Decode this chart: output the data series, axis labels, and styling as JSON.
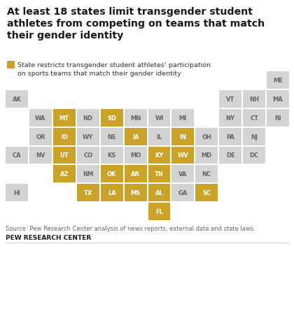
{
  "title": "At least 18 states limit transgender student\nathletes from competing on teams that match\ntheir gender identity",
  "legend_label": "State restricts transgender student athletes’ participation\non sports teams that match their gender identity",
  "source": "Source: Pew Research Center analysis of news reports, external data and state laws.",
  "footer": "PEW RESEARCH CENTER",
  "highlight_color": "#C9A227",
  "neutral_color": "#D4D4D4",
  "background_color": "#FFFFFF",
  "title_color": "#1a1a1a",
  "source_color": "#666666",
  "footer_color": "#1a1a1a",
  "neutral_text_color": "#666666",
  "highlight_text_color": "#FFFFFF",
  "states": [
    {
      "abbr": "AK",
      "col": 0,
      "row": 1,
      "highlight": false
    },
    {
      "abbr": "WA",
      "col": 1,
      "row": 2,
      "highlight": false
    },
    {
      "abbr": "MT",
      "col": 2,
      "row": 2,
      "highlight": true
    },
    {
      "abbr": "ND",
      "col": 3,
      "row": 2,
      "highlight": false
    },
    {
      "abbr": "SD",
      "col": 4,
      "row": 2,
      "highlight": true
    },
    {
      "abbr": "MN",
      "col": 5,
      "row": 2,
      "highlight": false
    },
    {
      "abbr": "WI",
      "col": 6,
      "row": 2,
      "highlight": false
    },
    {
      "abbr": "MI",
      "col": 7,
      "row": 2,
      "highlight": false
    },
    {
      "abbr": "VT",
      "col": 9,
      "row": 1,
      "highlight": false
    },
    {
      "abbr": "NH",
      "col": 10,
      "row": 1,
      "highlight": false
    },
    {
      "abbr": "ME",
      "col": 11,
      "row": 0,
      "highlight": false
    },
    {
      "abbr": "MA",
      "col": 11,
      "row": 1,
      "highlight": false
    },
    {
      "abbr": "NY",
      "col": 9,
      "row": 2,
      "highlight": false
    },
    {
      "abbr": "CT",
      "col": 10,
      "row": 2,
      "highlight": false
    },
    {
      "abbr": "RI",
      "col": 11,
      "row": 2,
      "highlight": false
    },
    {
      "abbr": "OR",
      "col": 1,
      "row": 3,
      "highlight": false
    },
    {
      "abbr": "ID",
      "col": 2,
      "row": 3,
      "highlight": true
    },
    {
      "abbr": "WY",
      "col": 3,
      "row": 3,
      "highlight": false
    },
    {
      "abbr": "NE",
      "col": 4,
      "row": 3,
      "highlight": false
    },
    {
      "abbr": "IA",
      "col": 5,
      "row": 3,
      "highlight": true
    },
    {
      "abbr": "IL",
      "col": 6,
      "row": 3,
      "highlight": false
    },
    {
      "abbr": "IN",
      "col": 7,
      "row": 3,
      "highlight": true
    },
    {
      "abbr": "OH",
      "col": 8,
      "row": 3,
      "highlight": false
    },
    {
      "abbr": "PA",
      "col": 9,
      "row": 3,
      "highlight": false
    },
    {
      "abbr": "NJ",
      "col": 10,
      "row": 3,
      "highlight": false
    },
    {
      "abbr": "CA",
      "col": 0,
      "row": 4,
      "highlight": false
    },
    {
      "abbr": "NV",
      "col": 1,
      "row": 4,
      "highlight": false
    },
    {
      "abbr": "UT",
      "col": 2,
      "row": 4,
      "highlight": true
    },
    {
      "abbr": "CO",
      "col": 3,
      "row": 4,
      "highlight": false
    },
    {
      "abbr": "KS",
      "col": 4,
      "row": 4,
      "highlight": false
    },
    {
      "abbr": "MO",
      "col": 5,
      "row": 4,
      "highlight": false
    },
    {
      "abbr": "KY",
      "col": 6,
      "row": 4,
      "highlight": true
    },
    {
      "abbr": "WV",
      "col": 7,
      "row": 4,
      "highlight": true
    },
    {
      "abbr": "MD",
      "col": 8,
      "row": 4,
      "highlight": false
    },
    {
      "abbr": "DE",
      "col": 9,
      "row": 4,
      "highlight": false
    },
    {
      "abbr": "DC",
      "col": 10,
      "row": 4,
      "highlight": false
    },
    {
      "abbr": "AZ",
      "col": 2,
      "row": 5,
      "highlight": true
    },
    {
      "abbr": "NM",
      "col": 3,
      "row": 5,
      "highlight": false
    },
    {
      "abbr": "OK",
      "col": 4,
      "row": 5,
      "highlight": true
    },
    {
      "abbr": "AR",
      "col": 5,
      "row": 5,
      "highlight": true
    },
    {
      "abbr": "TN",
      "col": 6,
      "row": 5,
      "highlight": true
    },
    {
      "abbr": "VA",
      "col": 7,
      "row": 5,
      "highlight": false
    },
    {
      "abbr": "NC",
      "col": 8,
      "row": 5,
      "highlight": false
    },
    {
      "abbr": "HI",
      "col": 0,
      "row": 6,
      "highlight": false
    },
    {
      "abbr": "TX",
      "col": 3,
      "row": 6,
      "highlight": true
    },
    {
      "abbr": "LA",
      "col": 4,
      "row": 6,
      "highlight": true
    },
    {
      "abbr": "MS",
      "col": 5,
      "row": 6,
      "highlight": true
    },
    {
      "abbr": "AL",
      "col": 6,
      "row": 6,
      "highlight": true
    },
    {
      "abbr": "GA",
      "col": 7,
      "row": 6,
      "highlight": false
    },
    {
      "abbr": "SC",
      "col": 8,
      "row": 6,
      "highlight": true
    },
    {
      "abbr": "FL",
      "col": 6,
      "row": 7,
      "highlight": true
    }
  ]
}
